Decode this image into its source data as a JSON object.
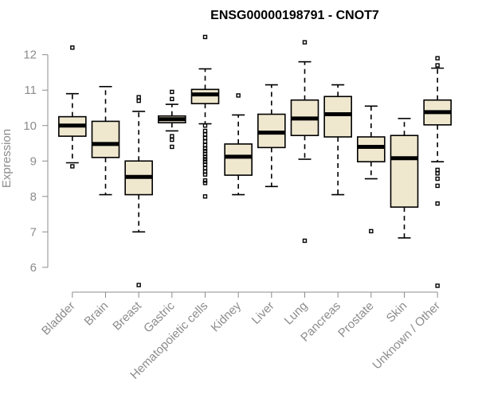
{
  "chart_data": {
    "type": "boxplot",
    "title": "ENSG00000198791 - CNOT7",
    "xlabel": "",
    "ylabel": "Expression",
    "ylim": [
      5.3,
      12.6
    ],
    "yticks": [
      6,
      7,
      8,
      9,
      10,
      11,
      12
    ],
    "grid": false,
    "categories": [
      "Bladder",
      "Brain",
      "Breast",
      "Gastric",
      "Hematopoietic cells",
      "Kidney",
      "Liver",
      "Lung",
      "Pancreas",
      "Prostate",
      "Skin",
      "Unknown / Other"
    ],
    "boxes": [
      {
        "name": "Bladder",
        "whisker_low": 8.95,
        "q1": 9.7,
        "median": 10.0,
        "q3": 10.25,
        "whisker_high": 10.9,
        "outliers": [
          12.2,
          8.85
        ]
      },
      {
        "name": "Brain",
        "whisker_low": 8.05,
        "q1": 9.1,
        "median": 9.48,
        "q3": 10.12,
        "whisker_high": 11.1,
        "outliers": []
      },
      {
        "name": "Breast",
        "whisker_low": 7.0,
        "q1": 8.05,
        "median": 8.55,
        "q3": 9.0,
        "whisker_high": 10.4,
        "outliers": [
          10.8,
          10.7,
          5.5
        ]
      },
      {
        "name": "Gastric",
        "whisker_low": 9.85,
        "q1": 10.08,
        "median": 10.18,
        "q3": 10.27,
        "whisker_high": 10.6,
        "outliers": [
          10.95,
          10.75,
          9.7,
          9.6,
          9.4
        ]
      },
      {
        "name": "Hematopoietic cells",
        "whisker_low": 10.05,
        "q1": 10.62,
        "median": 10.88,
        "q3": 11.02,
        "whisker_high": 11.6,
        "outliers": [
          12.5,
          10.0,
          9.85,
          9.75,
          9.65,
          9.55,
          9.45,
          9.35,
          9.28,
          9.2,
          9.12,
          9.05,
          8.98,
          8.9,
          8.8,
          8.7,
          8.62,
          8.45,
          8.38,
          8.0
        ]
      },
      {
        "name": "Kidney",
        "whisker_low": 8.05,
        "q1": 8.6,
        "median": 9.12,
        "q3": 9.48,
        "whisker_high": 10.3,
        "outliers": [
          10.85
        ]
      },
      {
        "name": "Liver",
        "whisker_low": 8.28,
        "q1": 9.38,
        "median": 9.8,
        "q3": 10.32,
        "whisker_high": 11.15,
        "outliers": []
      },
      {
        "name": "Lung",
        "whisker_low": 9.05,
        "q1": 9.72,
        "median": 10.2,
        "q3": 10.72,
        "whisker_high": 11.8,
        "outliers": [
          12.35,
          6.75
        ]
      },
      {
        "name": "Pancreas",
        "whisker_low": 8.05,
        "q1": 9.68,
        "median": 10.32,
        "q3": 10.82,
        "whisker_high": 11.15,
        "outliers": []
      },
      {
        "name": "Prostate",
        "whisker_low": 8.5,
        "q1": 8.98,
        "median": 9.4,
        "q3": 9.68,
        "whisker_high": 10.55,
        "outliers": [
          7.02
        ]
      },
      {
        "name": "Skin",
        "whisker_low": 6.83,
        "q1": 7.7,
        "median": 9.08,
        "q3": 9.72,
        "whisker_high": 10.2,
        "outliers": []
      },
      {
        "name": "Unknown / Other",
        "whisker_low": 8.98,
        "q1": 10.02,
        "median": 10.38,
        "q3": 10.72,
        "whisker_high": 11.62,
        "outliers": [
          11.9,
          11.7,
          8.75,
          8.65,
          8.5,
          8.3,
          7.8,
          5.48
        ]
      }
    ]
  }
}
